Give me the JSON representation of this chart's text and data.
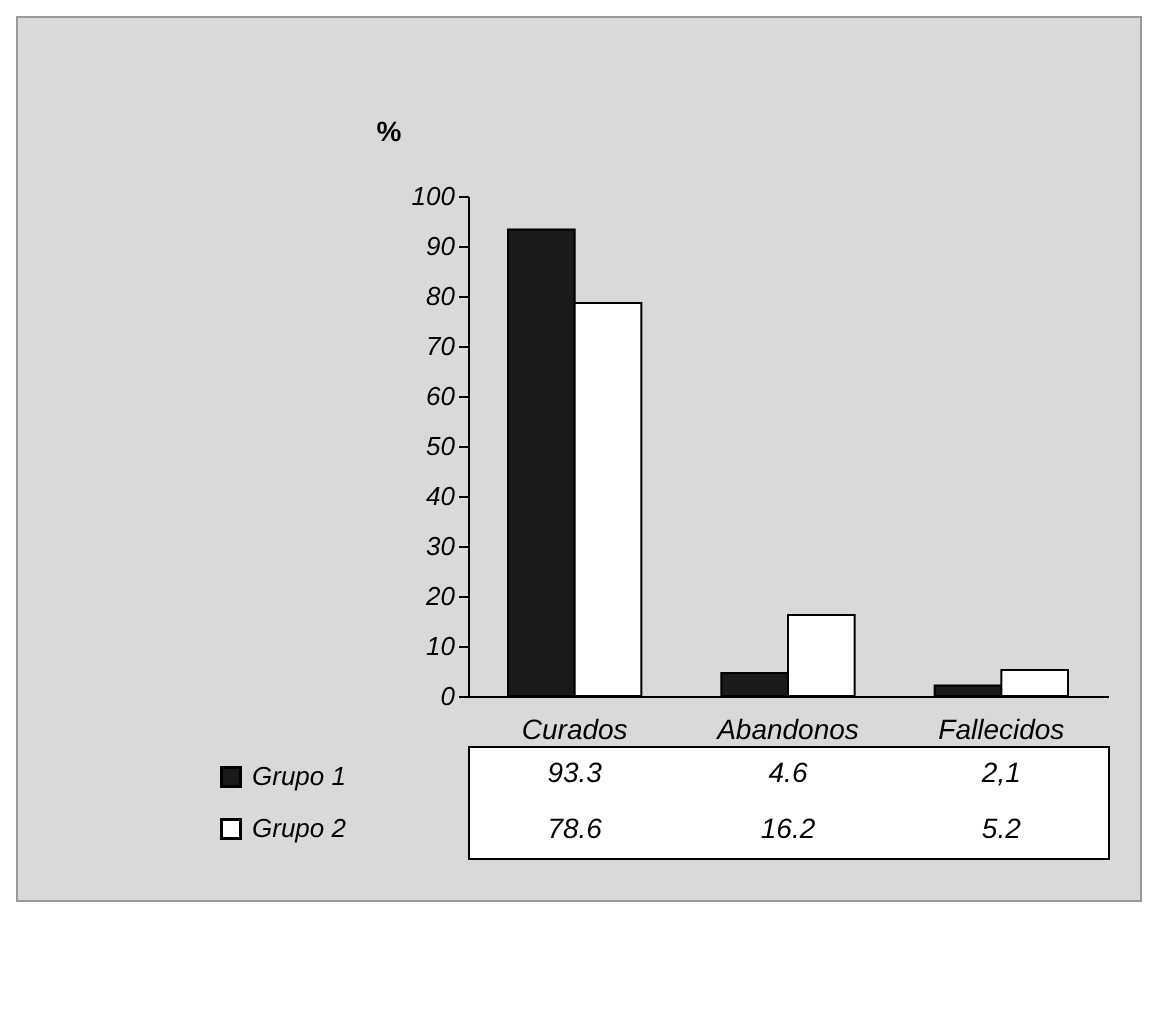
{
  "chart_data": {
    "type": "bar",
    "ylabel": "%",
    "categories": [
      "Curados",
      "Abandonos",
      "Fallecidos"
    ],
    "series": [
      {
        "name": "Grupo 1",
        "color": "#1a1a1a",
        "values": [
          93.3,
          4.6,
          2.1
        ],
        "value_labels": [
          "93.3",
          "4.6",
          "2,1"
        ]
      },
      {
        "name": "Grupo 2",
        "color": "#ffffff",
        "values": [
          78.6,
          16.2,
          5.2
        ],
        "value_labels": [
          "78.6",
          "16.2",
          "5.2"
        ]
      }
    ],
    "ylim": [
      0,
      100
    ],
    "yticks": [
      0,
      10,
      20,
      30,
      40,
      50,
      60,
      70,
      80,
      90,
      100
    ],
    "legend": "bottom left"
  }
}
